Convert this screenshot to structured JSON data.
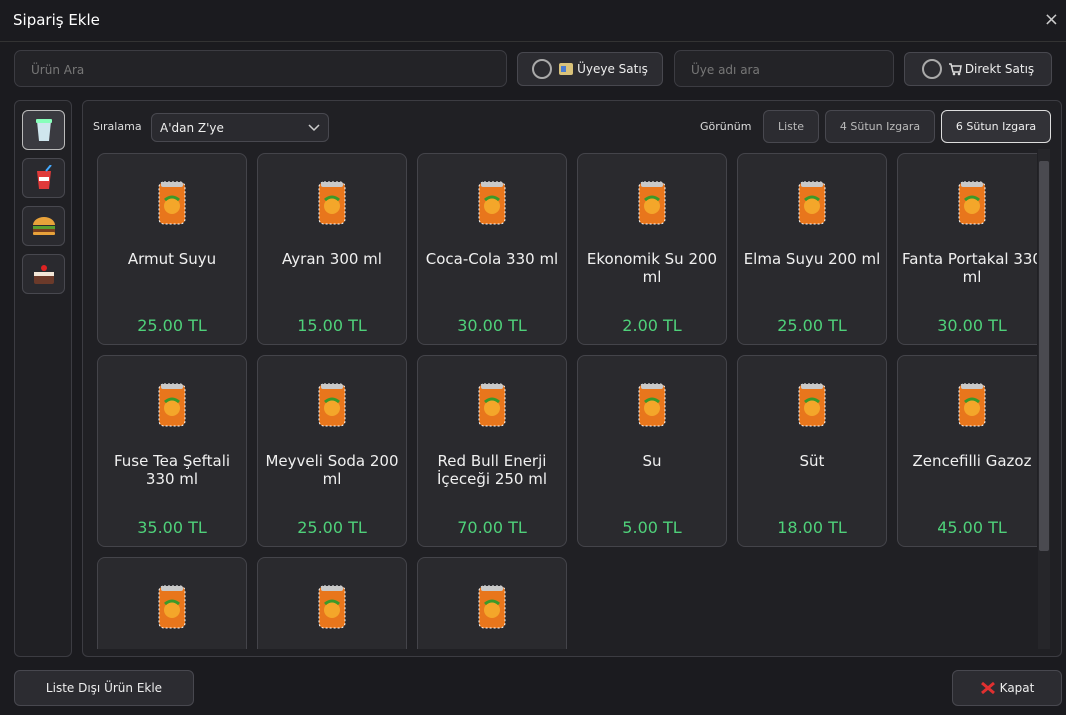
{
  "header": {
    "title": "Sipariş Ekle",
    "close": "×"
  },
  "toolbar": {
    "search_placeholder": "Ürün Ara",
    "member_sale": "Üyeye Satış",
    "member_placeholder": "Üye adı ara",
    "direct_sale": "Direkt Satış"
  },
  "sort": {
    "label": "Sıralama",
    "value": "A'dan Z'ye"
  },
  "view": {
    "label": "Görünüm",
    "options": [
      "Liste",
      "4 Sütun Izgara",
      "6 Sütun Izgara"
    ]
  },
  "products": [
    {
      "name": "Armut Suyu",
      "price": "25.00 TL"
    },
    {
      "name": "Ayran 300 ml",
      "price": "15.00 TL"
    },
    {
      "name": "Coca-Cola 330 ml",
      "price": "30.00 TL"
    },
    {
      "name": "Ekonomik Su 200 ml",
      "price": "2.00 TL"
    },
    {
      "name": "Elma Suyu 200 ml",
      "price": "25.00 TL"
    },
    {
      "name": "Fanta Portakal 330 ml",
      "price": "30.00 TL"
    },
    {
      "name": "Fuse Tea Şeftali 330 ml",
      "price": "35.00 TL"
    },
    {
      "name": "Meyveli Soda 200 ml",
      "price": "25.00 TL"
    },
    {
      "name": "Red Bull Enerji İçeceği 250 ml",
      "price": "70.00 TL"
    },
    {
      "name": "Su",
      "price": "5.00 TL"
    },
    {
      "name": "Süt",
      "price": "18.00 TL"
    },
    {
      "name": "Zencefilli Gazoz",
      "price": "45.00 TL"
    }
  ],
  "footer": {
    "add_unlisted": "Liste Dışı Ürün Ekle",
    "close": "Kapat"
  }
}
